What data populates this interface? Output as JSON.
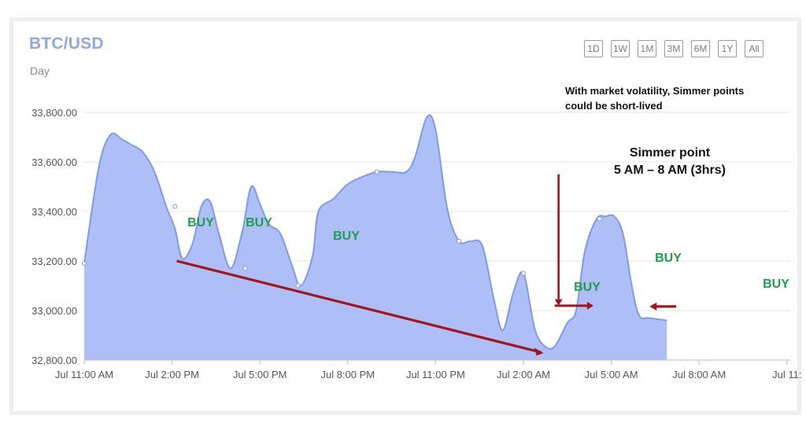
{
  "chart_data": {
    "type": "area",
    "title": "BTC/USD",
    "subtitle": "Day",
    "ylim": [
      32800,
      33800
    ],
    "yticks": [
      "33,800.00",
      "33,600.00",
      "33,400.00",
      "33,200.00",
      "33,000.00",
      "32,800.00"
    ],
    "ytick_values": [
      33800,
      33600,
      33400,
      33200,
      33000,
      32800
    ],
    "xticks": [
      "Jul 11:00 AM",
      "Jul 2:00 PM",
      "Jul 5:00 PM",
      "Jul 8:00 PM",
      "Jul 11:00 PM",
      "Jul 2:00 AM",
      "Jul 5:00 AM",
      "Jul 8:00 AM",
      "Jul 11:"
    ],
    "xtick_hours": [
      0,
      3,
      6,
      9,
      12,
      15,
      18,
      21,
      24
    ],
    "grid": true,
    "series": [
      {
        "color": "#aabcf7",
        "line_color": "#7f9ae8",
        "points": [
          [
            0.0,
            33190
          ],
          [
            0.5,
            33580
          ],
          [
            0.9,
            33710
          ],
          [
            1.3,
            33690
          ],
          [
            1.6,
            33670
          ],
          [
            2.0,
            33640
          ],
          [
            2.4,
            33560
          ],
          [
            2.8,
            33420
          ],
          [
            3.1,
            33330
          ],
          [
            3.35,
            33210
          ],
          [
            3.7,
            33270
          ],
          [
            4.0,
            33420
          ],
          [
            4.3,
            33440
          ],
          [
            4.6,
            33310
          ],
          [
            5.0,
            33170
          ],
          [
            5.4,
            33320
          ],
          [
            5.7,
            33500
          ],
          [
            6.0,
            33430
          ],
          [
            6.3,
            33350
          ],
          [
            6.7,
            33310
          ],
          [
            7.1,
            33180
          ],
          [
            7.4,
            33100
          ],
          [
            7.8,
            33220
          ],
          [
            8.0,
            33400
          ],
          [
            8.5,
            33450
          ],
          [
            9.0,
            33510
          ],
          [
            9.5,
            33540
          ],
          [
            10.0,
            33560
          ],
          [
            10.5,
            33560
          ],
          [
            11.0,
            33560
          ],
          [
            11.3,
            33620
          ],
          [
            11.7,
            33780
          ],
          [
            12.0,
            33730
          ],
          [
            12.4,
            33410
          ],
          [
            12.8,
            33280
          ],
          [
            13.2,
            33280
          ],
          [
            13.6,
            33260
          ],
          [
            14.0,
            33040
          ],
          [
            14.3,
            32920
          ],
          [
            14.65,
            33070
          ],
          [
            15.0,
            33150
          ],
          [
            15.4,
            32920
          ],
          [
            15.8,
            32850
          ],
          [
            16.1,
            32860
          ],
          [
            16.5,
            32950
          ],
          [
            16.8,
            33000
          ],
          [
            17.1,
            33240
          ],
          [
            17.5,
            33370
          ],
          [
            17.8,
            33380
          ],
          [
            18.1,
            33380
          ],
          [
            18.4,
            33310
          ],
          [
            18.7,
            33100
          ],
          [
            18.95,
            32980
          ],
          [
            19.3,
            32970
          ],
          [
            19.9,
            32960
          ]
        ],
        "markers": [
          [
            0.0,
            33190
          ],
          [
            3.1,
            33420
          ],
          [
            5.5,
            33170
          ],
          [
            7.3,
            33100
          ],
          [
            10.0,
            33560
          ],
          [
            12.8,
            33280
          ],
          [
            15.0,
            33150
          ],
          [
            17.6,
            33370
          ]
        ]
      }
    ],
    "annotations": {
      "buy_label": "BUY",
      "buy_color": "#1f9d4c",
      "buy_positions": [
        [
          3.65,
          33355
        ],
        [
          5.5,
          33355
        ],
        [
          8.15,
          33300
        ],
        [
          15.45,
          33095
        ],
        [
          16.7,
          33215
        ],
        [
          19.9,
          33110
        ]
      ],
      "trend_color": "#a4151b",
      "trend_start": [
        3.0,
        33200
      ],
      "trend_end": [
        15.5,
        32850
      ],
      "note_lines": [
        "With market volatility, Simmer points",
        "could be short-lived"
      ],
      "simmer_title": "Simmer point",
      "simmer_range": "5 AM – 8 AM (3hrs)",
      "simmer_hour": 16.2,
      "simmer_arrow_top": 33550,
      "simmer_arrow_bottom": 33020,
      "simmer_hbar": [
        15.8,
        16.8,
        33010
      ],
      "right_arrow": [
        20.0,
        19.2,
        33010
      ]
    }
  },
  "range_buttons": [
    "1D",
    "1W",
    "1M",
    "3M",
    "6M",
    "1Y",
    "All"
  ],
  "colors": {
    "title": "#8fa6e6",
    "grid": "#e6e6e6"
  }
}
